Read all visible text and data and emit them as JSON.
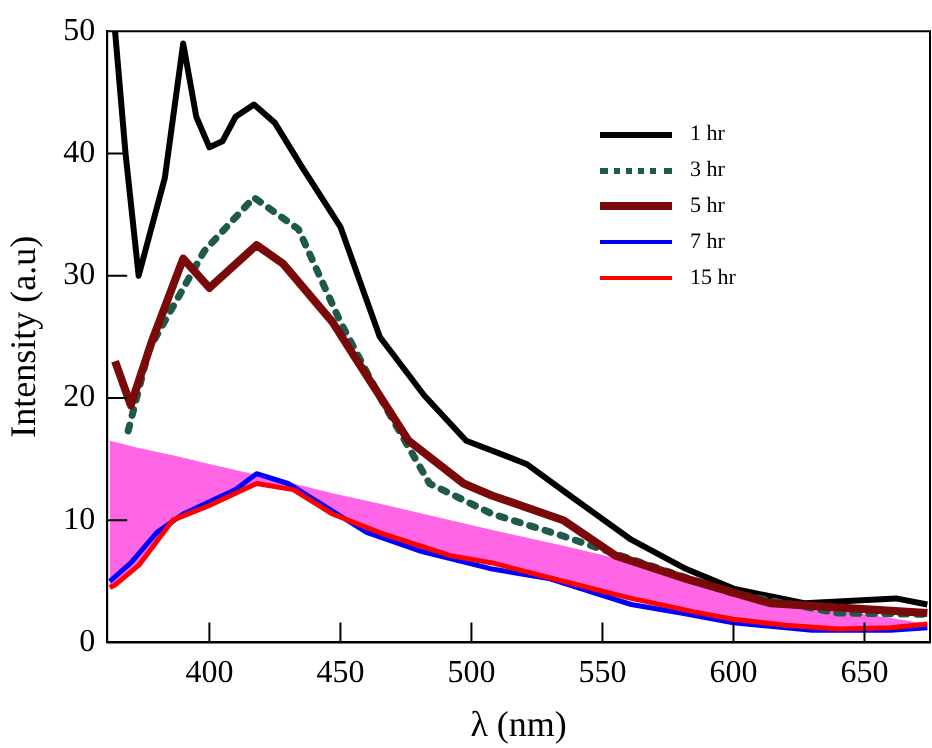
{
  "chart_data": {
    "type": "line",
    "xlabel": "λ (nm)",
    "ylabel": "Intensity (a.u)",
    "xlim": [
      361,
      675
    ],
    "ylim": [
      0,
      50
    ],
    "xticks": [
      400,
      450,
      500,
      550,
      600,
      650
    ],
    "yticks": [
      0,
      10,
      20,
      30,
      40,
      50
    ],
    "grid": false,
    "legend": "top right",
    "marker": "none",
    "series": [
      {
        "name": "1 hr",
        "color": "#000000",
        "line_style": "solid",
        "x": [
          364,
          368,
          373,
          378,
          383,
          390,
          395,
          400,
          405,
          410,
          417,
          425,
          435,
          450,
          465,
          482,
          498,
          521,
          537,
          561,
          582,
          600,
          627,
          662,
          674
        ],
        "values": [
          50,
          40,
          30,
          34,
          38,
          49,
          43,
          40.5,
          41,
          43,
          44,
          42.5,
          39,
          34,
          25,
          20.2,
          16.5,
          14.6,
          12.1,
          8.4,
          6,
          4.4,
          3.2,
          3.6,
          3.1
        ]
      },
      {
        "name": "3 hr",
        "color": "#1e5a4a",
        "line_style": "dotted",
        "x": [
          369,
          377,
          398,
          417,
          434,
          450,
          466,
          484,
          508,
          535,
          561,
          600,
          640,
          674
        ],
        "values": [
          17.3,
          24,
          32,
          36.4,
          33.8,
          26.2,
          19.7,
          13,
          10.5,
          8.7,
          6.8,
          4,
          2.4,
          2.3
        ]
      },
      {
        "name": "5 hr",
        "color": "#7a0a0a",
        "line_style": "solid",
        "x": [
          364,
          370,
          378,
          390,
          400,
          418,
          428,
          447,
          455,
          476,
          497,
          508,
          535,
          555,
          582,
          614,
          674
        ],
        "values": [
          23,
          19.4,
          24.6,
          31.4,
          29,
          32.5,
          31,
          26.2,
          23.5,
          16.5,
          13,
          12,
          10,
          7.1,
          5.2,
          3.2,
          2.4
        ]
      },
      {
        "name": "7 hr",
        "color": "#0000ff",
        "line_style": "solid",
        "x": [
          362,
          370,
          380,
          390,
          400,
          410,
          418,
          430,
          445,
          460,
          480,
          508,
          530,
          561,
          580,
          600,
          630,
          660,
          674
        ],
        "values": [
          5,
          6.5,
          9,
          10.5,
          11.5,
          12.5,
          13.8,
          13,
          11,
          9,
          7.5,
          6,
          5.2,
          3.1,
          2.4,
          1.6,
          1,
          1,
          1.2
        ]
      },
      {
        "name": "15 hr",
        "color": "#ff0000",
        "line_style": "solid",
        "x": [
          362,
          364,
          373,
          386,
          400,
          418,
          432,
          447,
          466,
          492,
          508,
          535,
          561,
          585,
          600,
          620,
          640,
          660,
          674
        ],
        "values": [
          4.5,
          4.7,
          6.3,
          10,
          11.2,
          13,
          12.5,
          10.5,
          8.9,
          7.1,
          6.5,
          5,
          3.6,
          2.5,
          1.9,
          1.4,
          1.1,
          1.2,
          1.5
        ]
      },
      {
        "type": "area",
        "color": "#ff66e6",
        "x": [
          362,
          364,
          373,
          386,
          400,
          418,
          432,
          447,
          466,
          492,
          508,
          535,
          561,
          585,
          600,
          620,
          640,
          660,
          674
        ],
        "values": [
          16.5,
          16.4,
          15.9,
          15.3,
          14.6,
          13.7,
          13,
          12.2,
          11.3,
          10,
          9.2,
          7.9,
          6.6,
          5.4,
          4.6,
          3.6,
          2.6,
          2,
          1.5
        ]
      }
    ]
  }
}
